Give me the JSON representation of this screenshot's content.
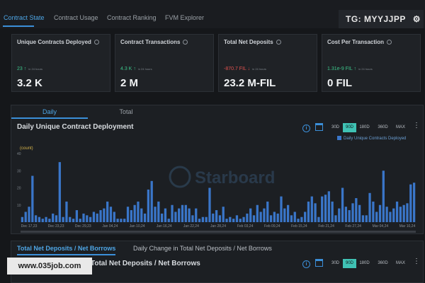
{
  "nav": {
    "tabs": [
      {
        "label": "Contract State"
      },
      {
        "label": "Contract Usage"
      },
      {
        "label": "Contract Ranking"
      },
      {
        "label": "FVM Explorer"
      }
    ]
  },
  "watermarks": {
    "telegram": "TG: MYYJJPP",
    "website": "www.035job.com"
  },
  "stats": [
    {
      "title": "Unique Contracts Deployed",
      "delta": "23",
      "delta_sub": "in 24 hours",
      "direction": "up",
      "value": "3.2 K"
    },
    {
      "title": "Contract Transactions",
      "delta": "4.3 K",
      "delta_sub": "in 24 hours",
      "direction": "up",
      "value": "2 M"
    },
    {
      "title": "Total Net Deposits",
      "delta": "-870.7 FIL",
      "delta_sub": "in 24 hours",
      "direction": "down",
      "value": "23.2 M-FIL"
    },
    {
      "title": "Cost Per Transaction",
      "delta": "1.31e-9 FIL",
      "delta_sub": "in 24 hours",
      "direction": "up",
      "value": "0 FIL"
    }
  ],
  "chart_panel": {
    "tabs": {
      "daily": "Daily",
      "total": "Total"
    },
    "title": "Daily Unique Contract Deployment",
    "ranges": [
      "30D",
      "90D",
      "180D",
      "360D",
      "MAX"
    ],
    "active_range": "90D",
    "watermark": "Starboard"
  },
  "chart_data": {
    "type": "bar",
    "title": "Daily Unique Contract Deployment",
    "ylabel": "(count)",
    "ylim": [
      0,
      40
    ],
    "yticks": [
      0,
      10,
      20,
      30,
      40
    ],
    "xticks": [
      "Dec 17,23",
      "Dec 23,23",
      "Dec 29,23",
      "Jan 04,24",
      "Jan 10,24",
      "Jan 16,24",
      "Jan 22,24",
      "Jan 28,24",
      "Feb 03,24",
      "Feb 09,24",
      "Feb 15,24",
      "Feb 21,24",
      "Feb 27,24",
      "Mar 04,24",
      "Mar 10,24"
    ],
    "series": [
      {
        "name": "Daily Unique Contracts Deployed",
        "color": "#3a76c9",
        "values": [
          3,
          6,
          9,
          27,
          4,
          3,
          2,
          3,
          2,
          5,
          4,
          35,
          3,
          12,
          3,
          2,
          7,
          2,
          5,
          4,
          3,
          6,
          5,
          7,
          8,
          12,
          9,
          6,
          2,
          2,
          2,
          9,
          7,
          10,
          12,
          8,
          5,
          19,
          24,
          9,
          12,
          5,
          8,
          2,
          10,
          6,
          8,
          10,
          10,
          8,
          4,
          8,
          2,
          3,
          3,
          20,
          5,
          7,
          4,
          9,
          2,
          3,
          2,
          4,
          2,
          3,
          5,
          8,
          4,
          10,
          6,
          8,
          12,
          4,
          6,
          5,
          15,
          8,
          10,
          4,
          6,
          2,
          3,
          6,
          12,
          15,
          11,
          3,
          15,
          16,
          18,
          12,
          4,
          8,
          20,
          9,
          7,
          11,
          14,
          10,
          4,
          4,
          17,
          12,
          6,
          10,
          30,
          9,
          6,
          8,
          12,
          9,
          10,
          11,
          22,
          23
        ]
      }
    ],
    "legend": "top-right",
    "grid": false
  },
  "bottom_panel": {
    "tabs": {
      "first": "Total Net Deposits / Net Borrows",
      "second": "Daily Change in Total Net Deposits / Net Borrows"
    },
    "title": "Total Net Deposits / Net Borrows",
    "ranges": [
      "30D",
      "90D",
      "180D",
      "360D",
      "MAX"
    ],
    "active_range": "90D"
  }
}
